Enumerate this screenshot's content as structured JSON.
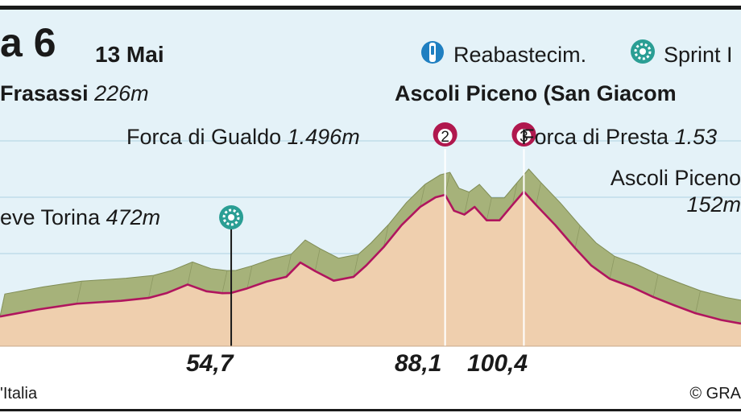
{
  "header": {
    "title": "a 6",
    "date": "13 Mai"
  },
  "legend": {
    "feed_label": "Reabastecim.",
    "feed_icon": "feed-bottle-icon",
    "sprint_label": "Sprint I",
    "sprint_icon": "sprint-icon"
  },
  "start": {
    "name": "Frasassi",
    "elevation": "226m"
  },
  "finish": {
    "name": "Ascoli Piceno (San Giacom"
  },
  "climbs": [
    {
      "category": "2",
      "name": "Forca di Gualdo",
      "elevation": "1.496m"
    },
    {
      "category": "3",
      "name": "Forca di Presta",
      "elevation": "1.53"
    }
  ],
  "sprint": {
    "name": "eve Torina",
    "elevation": "472m"
  },
  "finish_town": {
    "name": "Ascoli Piceno",
    "elevation": "152m"
  },
  "footer": {
    "left": "'Italia",
    "right": "© GRA"
  },
  "colors": {
    "sky": "#e4f2f8",
    "ground": "#efcfae",
    "terrain": "#a6b27a",
    "profile_line": "#b0155e",
    "climb_marker": "#b0184e",
    "sprint_marker": "#2a9e94",
    "feed_marker": "#1f7fc1",
    "frame": "#1a1a1a"
  },
  "chart_data": {
    "type": "area",
    "title": "a 6",
    "xlabel": "",
    "ylabel": "",
    "grid": true,
    "x_unit": "km",
    "xlim": [
      18.6,
      134.3
    ],
    "ylim": [
      0,
      1800
    ],
    "marked_km": [
      "54,7",
      "88,1",
      "100,4"
    ],
    "points": [
      [
        18.6,
        226
      ],
      [
        24.6,
        300
      ],
      [
        30.6,
        360
      ],
      [
        37.5,
        390
      ],
      [
        41.8,
        420
      ],
      [
        44.6,
        470
      ],
      [
        47.9,
        560
      ],
      [
        50.8,
        490
      ],
      [
        53.3,
        470
      ],
      [
        54.7,
        472
      ],
      [
        57.2,
        520
      ],
      [
        60.2,
        590
      ],
      [
        63.3,
        640
      ],
      [
        65.5,
        790
      ],
      [
        67.8,
        700
      ],
      [
        70.7,
        600
      ],
      [
        73.8,
        640
      ],
      [
        75.8,
        760
      ],
      [
        78.5,
        950
      ],
      [
        81.3,
        1180
      ],
      [
        84.2,
        1370
      ],
      [
        86.6,
        1470
      ],
      [
        88.1,
        1496
      ],
      [
        89.5,
        1330
      ],
      [
        91.1,
        1290
      ],
      [
        92.7,
        1370
      ],
      [
        94.6,
        1230
      ],
      [
        96.6,
        1230
      ],
      [
        98.6,
        1390
      ],
      [
        100.4,
        1530
      ],
      [
        102.3,
        1390
      ],
      [
        105.3,
        1180
      ],
      [
        108.4,
        940
      ],
      [
        110.9,
        760
      ],
      [
        113.8,
        620
      ],
      [
        117.4,
        530
      ],
      [
        120.6,
        430
      ],
      [
        124.0,
        340
      ],
      [
        127.2,
        260
      ],
      [
        131.2,
        190
      ],
      [
        134.3,
        152
      ]
    ],
    "markers": [
      {
        "km": 54.7,
        "type": "sprint",
        "label": "eve Torina",
        "elevation": 472
      },
      {
        "km": 88.1,
        "type": "climb",
        "category": "2",
        "label": "Forca di Gualdo",
        "elevation": 1496
      },
      {
        "km": 100.4,
        "type": "climb",
        "category": "3",
        "label": "Forca di Presta",
        "elevation": 1530
      }
    ]
  }
}
